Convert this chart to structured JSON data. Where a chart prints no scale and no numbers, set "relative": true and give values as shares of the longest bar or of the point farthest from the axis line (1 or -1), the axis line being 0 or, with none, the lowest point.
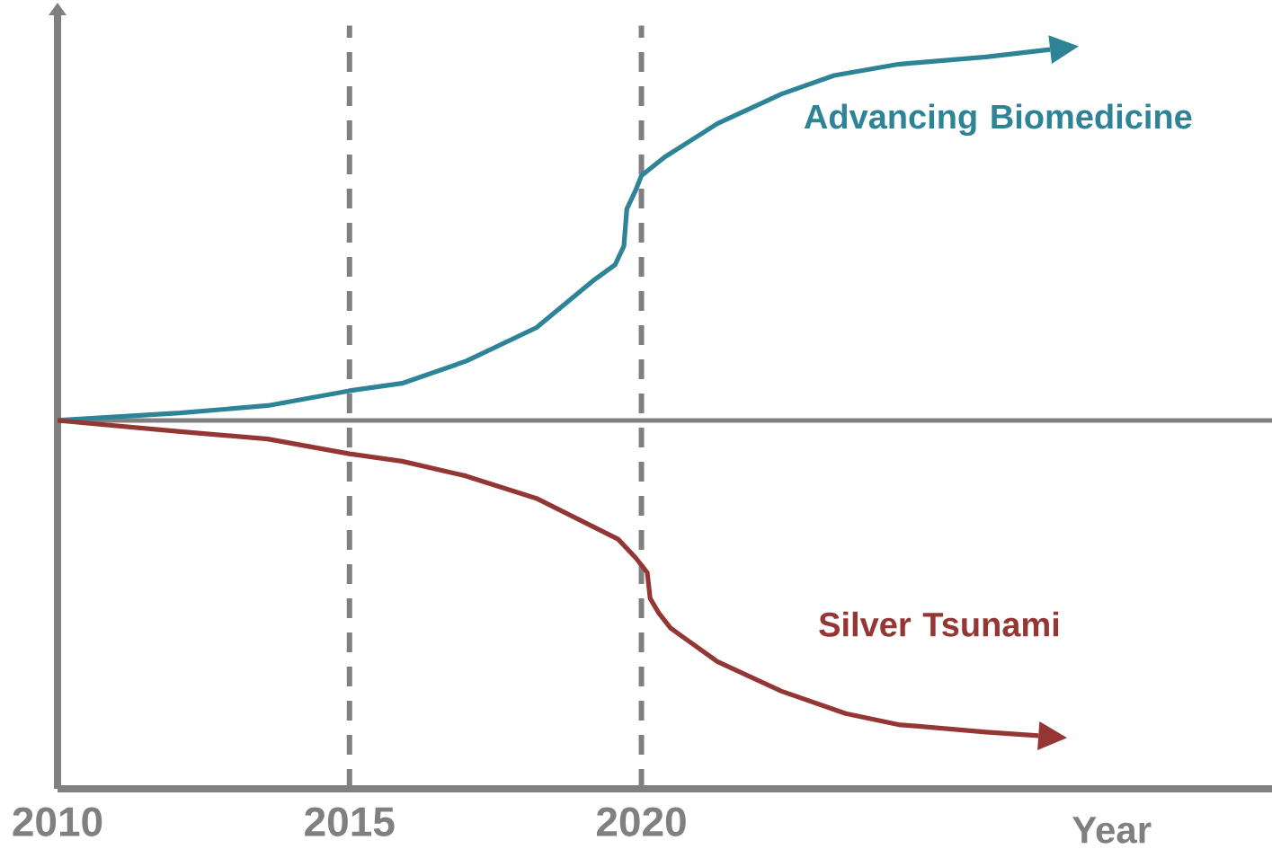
{
  "chart_data": {
    "type": "line",
    "relative": true,
    "xlabel": "Year",
    "xlim": [
      2010,
      2030.8
    ],
    "xticks": [
      {
        "value": 2010,
        "label": "2010"
      },
      {
        "value": 2015,
        "label": "2015"
      },
      {
        "value": 2020,
        "label": "2020"
      }
    ],
    "marker": "none",
    "line_style": "solid",
    "ref_lines": [
      {
        "axis": "x",
        "value": 2015,
        "color": "#808080",
        "line_style": "dashed"
      },
      {
        "axis": "x",
        "value": 2020,
        "color": "#808080",
        "line_style": "dashed"
      }
    ],
    "series": [
      {
        "name": "Advancing Biomedicine",
        "color": "#2e8497",
        "x": [
          2010,
          2012.1,
          2013.6,
          2015,
          2015.9,
          2017.0,
          2018.2,
          2019.2,
          2019.55,
          2019.7,
          2019.75,
          2019.9,
          2020.0,
          2020.4,
          2021.3,
          2022.4,
          2023.3,
          2024.4,
          2025.9,
          2027.0
        ],
        "values": [
          0,
          0.02,
          0.04,
          0.08,
          0.1,
          0.16,
          0.25,
          0.38,
          0.42,
          0.47,
          0.57,
          0.62,
          0.66,
          0.71,
          0.8,
          0.88,
          0.93,
          0.96,
          0.98,
          1.0
        ]
      },
      {
        "name": "Silver Tsunami",
        "color": "#943634",
        "x": [
          2010,
          2012.1,
          2013.6,
          2015,
          2015.9,
          2017.0,
          2018.2,
          2019.6,
          2019.9,
          2020.1,
          2020.15,
          2020.3,
          2020.5,
          2021.3,
          2022.4,
          2023.5,
          2024.4,
          2025.9,
          2026.8
        ],
        "values": [
          0,
          -0.03,
          -0.05,
          -0.09,
          -0.11,
          -0.15,
          -0.21,
          -0.32,
          -0.37,
          -0.41,
          -0.48,
          -0.52,
          -0.56,
          -0.65,
          -0.73,
          -0.79,
          -0.82,
          -0.84,
          -0.85
        ]
      }
    ]
  }
}
